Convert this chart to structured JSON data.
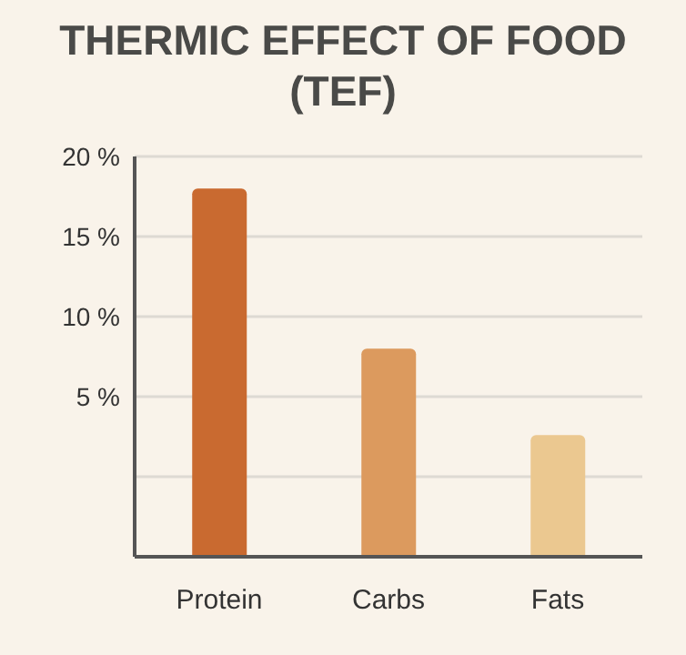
{
  "chart_data": {
    "type": "bar",
    "title": "THERMIC EFFECT OF FOOD (TEF)",
    "categories": [
      "Protein",
      "Carbs",
      "Fats"
    ],
    "values": [
      23,
      13,
      7.6
    ],
    "base": [
      -5,
      -5,
      -5
    ],
    "colors": [
      "#c96a30",
      "#dc9a5e",
      "#ebc890"
    ],
    "ylim": [
      -5,
      20
    ],
    "yticks": [
      {
        "value": 20,
        "label": "20 %"
      },
      {
        "value": 15,
        "label": "15 %"
      },
      {
        "value": 10,
        "label": "10 %"
      },
      {
        "value": 5,
        "label": "5 %"
      },
      {
        "value": 0,
        "label": null
      }
    ],
    "grid": "y"
  }
}
